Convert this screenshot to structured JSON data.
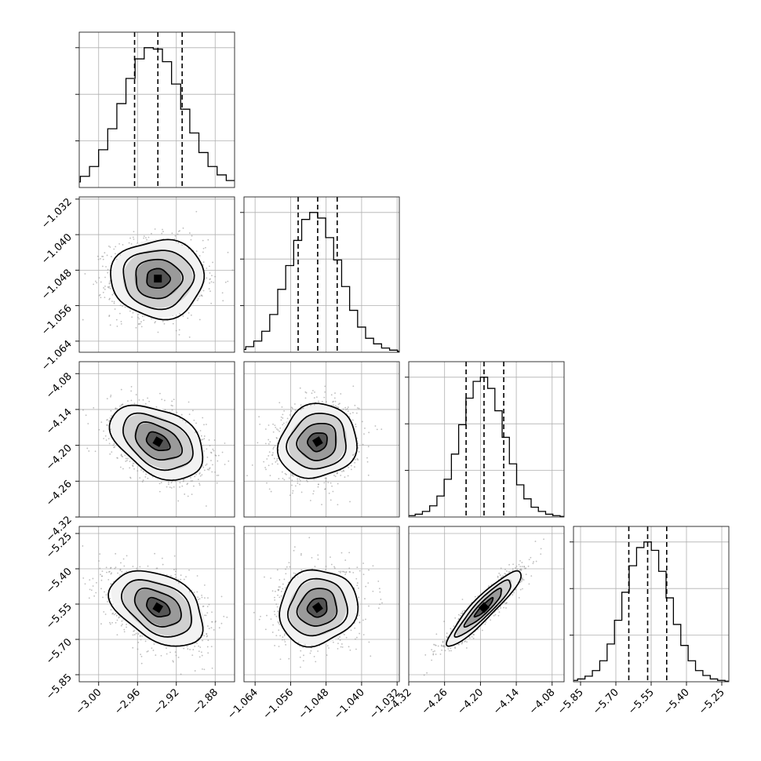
{
  "chart_data": {
    "type": "corner",
    "n_params": 4,
    "grid": true,
    "params": [
      {
        "index": 0,
        "range": [
          -3.02,
          -2.86
        ],
        "ticks": [
          -3.0,
          -2.96,
          -2.92,
          -2.88
        ],
        "tick_labels": [
          "−3.00",
          "−2.96",
          "−2.92",
          "−2.88"
        ],
        "median": -2.939,
        "quantile_lo": -2.963,
        "quantile_hi": -2.914,
        "std": 0.024,
        "histogram": [
          0.01,
          0.02,
          0.04,
          0.08,
          0.15,
          0.27,
          0.42,
          0.6,
          0.78,
          0.92,
          1.0,
          0.99,
          0.9,
          0.74,
          0.56,
          0.39,
          0.25,
          0.15,
          0.09,
          0.05,
          0.025,
          0.012,
          0.005
        ]
      },
      {
        "index": 1,
        "range": [
          -1.0665,
          -1.0315
        ],
        "ticks": [
          -1.064,
          -1.056,
          -1.048,
          -1.04,
          -1.032
        ],
        "tick_labels": [
          "−1.064",
          "−1.056",
          "−1.048",
          "−1.040",
          "−1.032"
        ],
        "median": -1.0499,
        "quantile_lo": -1.0543,
        "quantile_hi": -1.0455,
        "std": 0.0044,
        "histogram": [
          0.01,
          0.02,
          0.04,
          0.08,
          0.15,
          0.27,
          0.45,
          0.62,
          0.8,
          0.95,
          1.0,
          0.96,
          0.82,
          0.66,
          0.47,
          0.3,
          0.18,
          0.1,
          0.06,
          0.03,
          0.015,
          0.006
        ]
      },
      {
        "index": 2,
        "range": [
          -4.32,
          -4.06
        ],
        "ticks": [
          -4.32,
          -4.26,
          -4.2,
          -4.14,
          -4.08
        ],
        "tick_labels": [
          "−4.32",
          "−4.26",
          "−4.20",
          "−4.14",
          "−4.08"
        ],
        "median": -4.194,
        "quantile_lo": -4.224,
        "quantile_hi": -4.161,
        "std": 0.031,
        "histogram": [
          0.005,
          0.01,
          0.02,
          0.04,
          0.08,
          0.15,
          0.27,
          0.45,
          0.66,
          0.85,
          0.97,
          1.0,
          0.92,
          0.76,
          0.57,
          0.38,
          0.23,
          0.13,
          0.07,
          0.04,
          0.02,
          0.01,
          0.004
        ]
      },
      {
        "index": 3,
        "range": [
          -5.88,
          -5.22
        ],
        "ticks": [
          -5.85,
          -5.7,
          -5.55,
          -5.4,
          -5.25
        ],
        "tick_labels": [
          "−5.85",
          "−5.70",
          "−5.55",
          "−5.40",
          "−5.25"
        ],
        "median": -5.565,
        "quantile_lo": -5.645,
        "quantile_hi": -5.484,
        "std": 0.08,
        "histogram": [
          0.005,
          0.01,
          0.02,
          0.04,
          0.08,
          0.15,
          0.27,
          0.44,
          0.64,
          0.83,
          0.96,
          1.0,
          0.94,
          0.79,
          0.6,
          0.41,
          0.26,
          0.15,
          0.08,
          0.045,
          0.02,
          0.01,
          0.004
        ]
      }
    ],
    "correlations": [
      {
        "i": 1,
        "j": 0,
        "rho": 0.0
      },
      {
        "i": 2,
        "j": 0,
        "rho": -0.4
      },
      {
        "i": 2,
        "j": 1,
        "rho": 0.1
      },
      {
        "i": 3,
        "j": 0,
        "rho": -0.4
      },
      {
        "i": 3,
        "j": 1,
        "rho": 0.1
      },
      {
        "i": 3,
        "j": 2,
        "rho": 0.92
      }
    ],
    "contour_levels_sigma": [
      0.5,
      1.0,
      1.5,
      2.0
    ],
    "hist_y_ticks_fraction": [
      0.3,
      0.6,
      0.9
    ],
    "colors": {
      "line": "#000000",
      "points": "#888888",
      "grid": "#b0b0b0"
    }
  }
}
